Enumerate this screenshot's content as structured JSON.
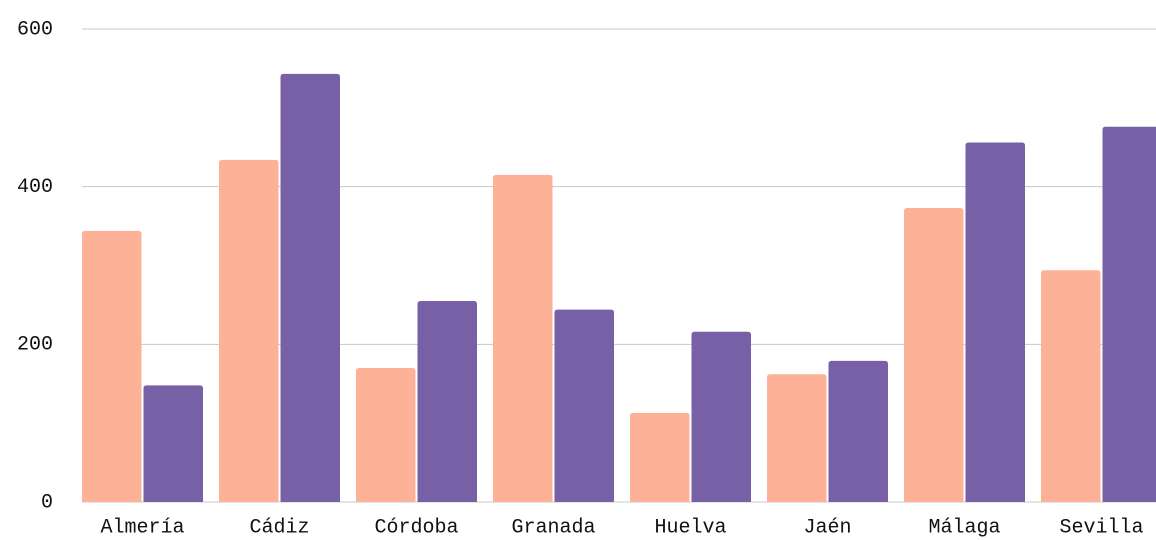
{
  "chart_data": {
    "type": "bar",
    "categories": [
      "Almería",
      "Cádiz",
      "Córdoba",
      "Granada",
      "Huelva",
      "Jaén",
      "Málaga",
      "Sevilla"
    ],
    "series": [
      {
        "color": "#fdb196",
        "values": [
          344,
          434,
          170,
          415,
          113,
          162,
          373,
          294
        ]
      },
      {
        "color": "#7760a6",
        "values": [
          148,
          543,
          255,
          244,
          216,
          179,
          456,
          476
        ]
      }
    ],
    "ylim": [
      0,
      600
    ],
    "yticks": [
      0,
      200,
      400,
      600
    ],
    "grid": true
  }
}
